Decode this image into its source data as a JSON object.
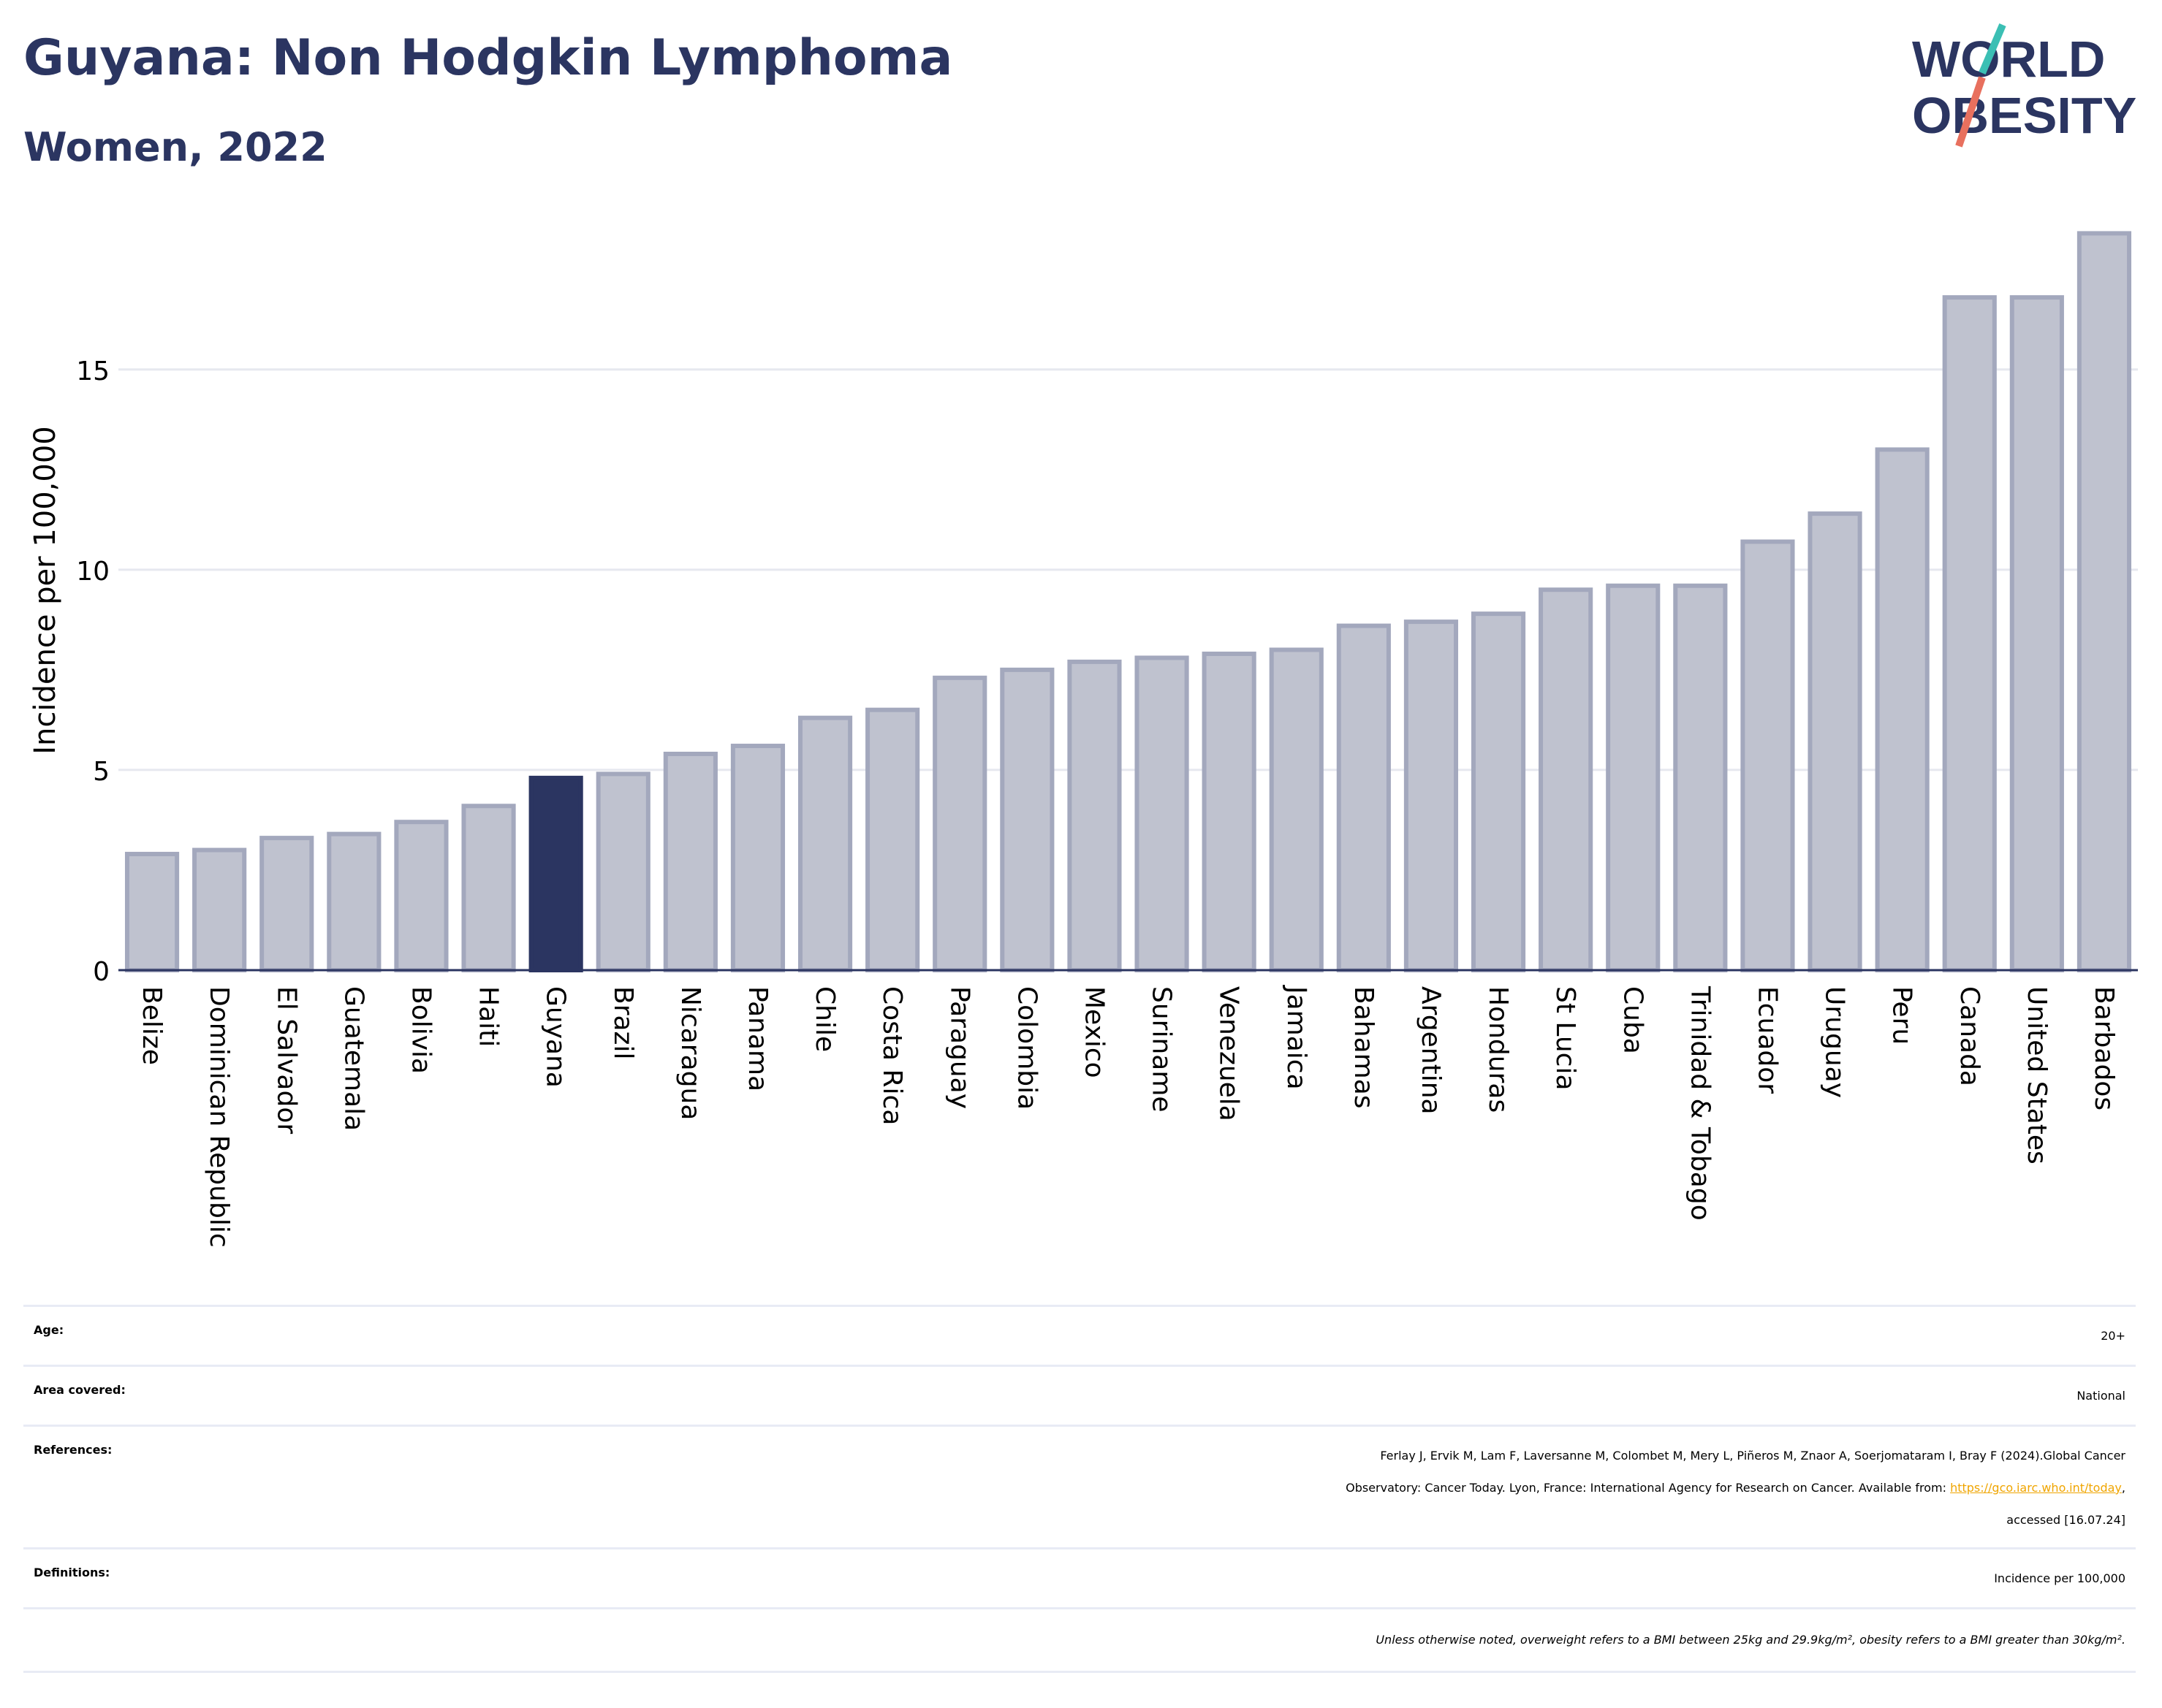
{
  "header": {
    "title": "Guyana: Non Hodgkin Lymphoma",
    "subtitle": "Women, 2022",
    "logo_line1": "WORLD",
    "logo_line2": "OBESITY"
  },
  "colors": {
    "highlight": "#2b3561",
    "bar": "#bfc2cf",
    "bar_edge": "#a3a8bd",
    "title": "#2b3561",
    "logo_teal": "#3bbfb4",
    "logo_red": "#e8705e"
  },
  "chart_data": {
    "type": "bar",
    "ylabel": "Incidence per 100,000",
    "ylim": [
      0,
      18.9
    ],
    "yticks": [
      0,
      5,
      10,
      15
    ],
    "grid": true,
    "highlight": "Guyana",
    "categories": [
      "Belize",
      "Dominican Republic",
      "El Salvador",
      "Guatemala",
      "Bolivia",
      "Haiti",
      "Guyana",
      "Brazil",
      "Nicaragua",
      "Panama",
      "Chile",
      "Costa Rica",
      "Paraguay",
      "Colombia",
      "Mexico",
      "Suriname",
      "Venezuela",
      "Jamaica",
      "Bahamas",
      "Argentina",
      "Honduras",
      "St Lucia",
      "Cuba",
      "Trinidad & Tobago",
      "Ecuador",
      "Uruguay",
      "Peru",
      "Canada",
      "United States",
      "Barbados"
    ],
    "values": [
      2.9,
      3.0,
      3.3,
      3.4,
      3.7,
      4.1,
      4.8,
      4.9,
      5.4,
      5.6,
      6.3,
      6.5,
      7.3,
      7.5,
      7.7,
      7.8,
      7.9,
      8.0,
      8.6,
      8.7,
      8.9,
      9.5,
      9.6,
      9.6,
      10.7,
      11.4,
      13.0,
      16.8,
      16.8,
      18.4
    ]
  },
  "info": {
    "age_label": "Age:",
    "age_value": "20+",
    "area_label": "Area covered:",
    "area_value": "National",
    "references_label": "References:",
    "references_line1": "Ferlay J, Ervik M, Lam F, Laversanne M, Colombet M, Mery L, Piñeros M, Znaor A, Soerjomataram I, Bray F (2024).Global Cancer",
    "references_line2": "Observatory: Cancer Today. Lyon, France: International Agency for Research on Cancer. Available from: ",
    "references_link": "https://gco.iarc.who.int/today",
    "references_line2_end": ",",
    "references_line3": "accessed [16.07.24]",
    "definitions_label": "Definitions:",
    "definitions_value": "Incidence per 100,000",
    "note": "Unless otherwise noted, overweight refers to a BMI between 25kg and 29.9kg/m², obesity refers to a BMI greater than 30kg/m²."
  }
}
